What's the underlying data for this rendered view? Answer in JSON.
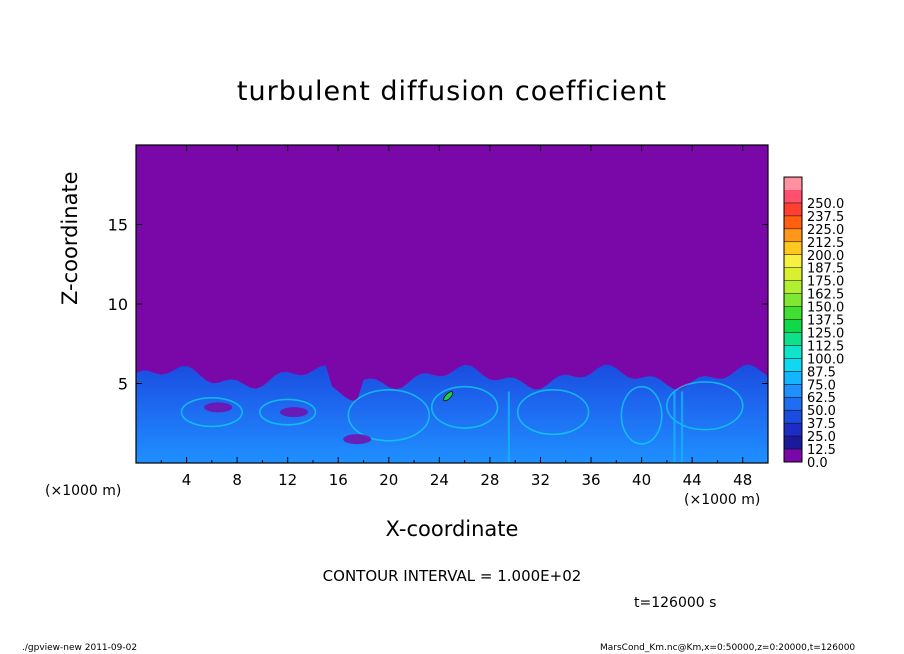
{
  "chart_data": {
    "type": "heatmap",
    "title": "turbulent diffusion coefficient",
    "xlabel": "X-coordinate",
    "ylabel": "Z-coordinate",
    "x_unit": "(×1000 m)",
    "y_unit": "(×1000 m)",
    "xlim": [
      0,
      50
    ],
    "ylim": [
      0,
      20
    ],
    "x_ticks": [
      4,
      8,
      12,
      16,
      20,
      24,
      28,
      32,
      36,
      40,
      44,
      48
    ],
    "y_ticks": [
      5,
      10,
      15
    ],
    "colorbar": {
      "levels": [
        "0.0",
        "12.5",
        "25.0",
        "37.5",
        "50.0",
        "62.5",
        "75.0",
        "87.5",
        "100.0",
        "112.5",
        "125.0",
        "137.5",
        "150.0",
        "162.5",
        "175.0",
        "187.5",
        "200.0",
        "212.5",
        "225.0",
        "237.5",
        "250.0"
      ],
      "colors": [
        "#7a08a8",
        "#1a1a9a",
        "#1e2cc4",
        "#1a4ce0",
        "#1e6ef2",
        "#1e90ff",
        "#14b4ff",
        "#10d8f0",
        "#10e4c8",
        "#10e08c",
        "#10d848",
        "#40e030",
        "#80e830",
        "#b0f030",
        "#d8f030",
        "#f8f040",
        "#ffc820",
        "#ff9818",
        "#ff6010",
        "#ff4030",
        "#ff5070",
        "#ff90a0"
      ]
    },
    "background_color": "#7a08a8",
    "turbulent_layer_top_approx": 5.8
  },
  "annotations": {
    "contour_interval": "CONTOUR INTERVAL = 1.000E+02",
    "time": "t=126000 s"
  },
  "footer": {
    "left": "./gpview-new   2011-09-02",
    "right": "MarsCond_Km.nc@Km,x=0:50000,z=0:20000,t=126000"
  }
}
